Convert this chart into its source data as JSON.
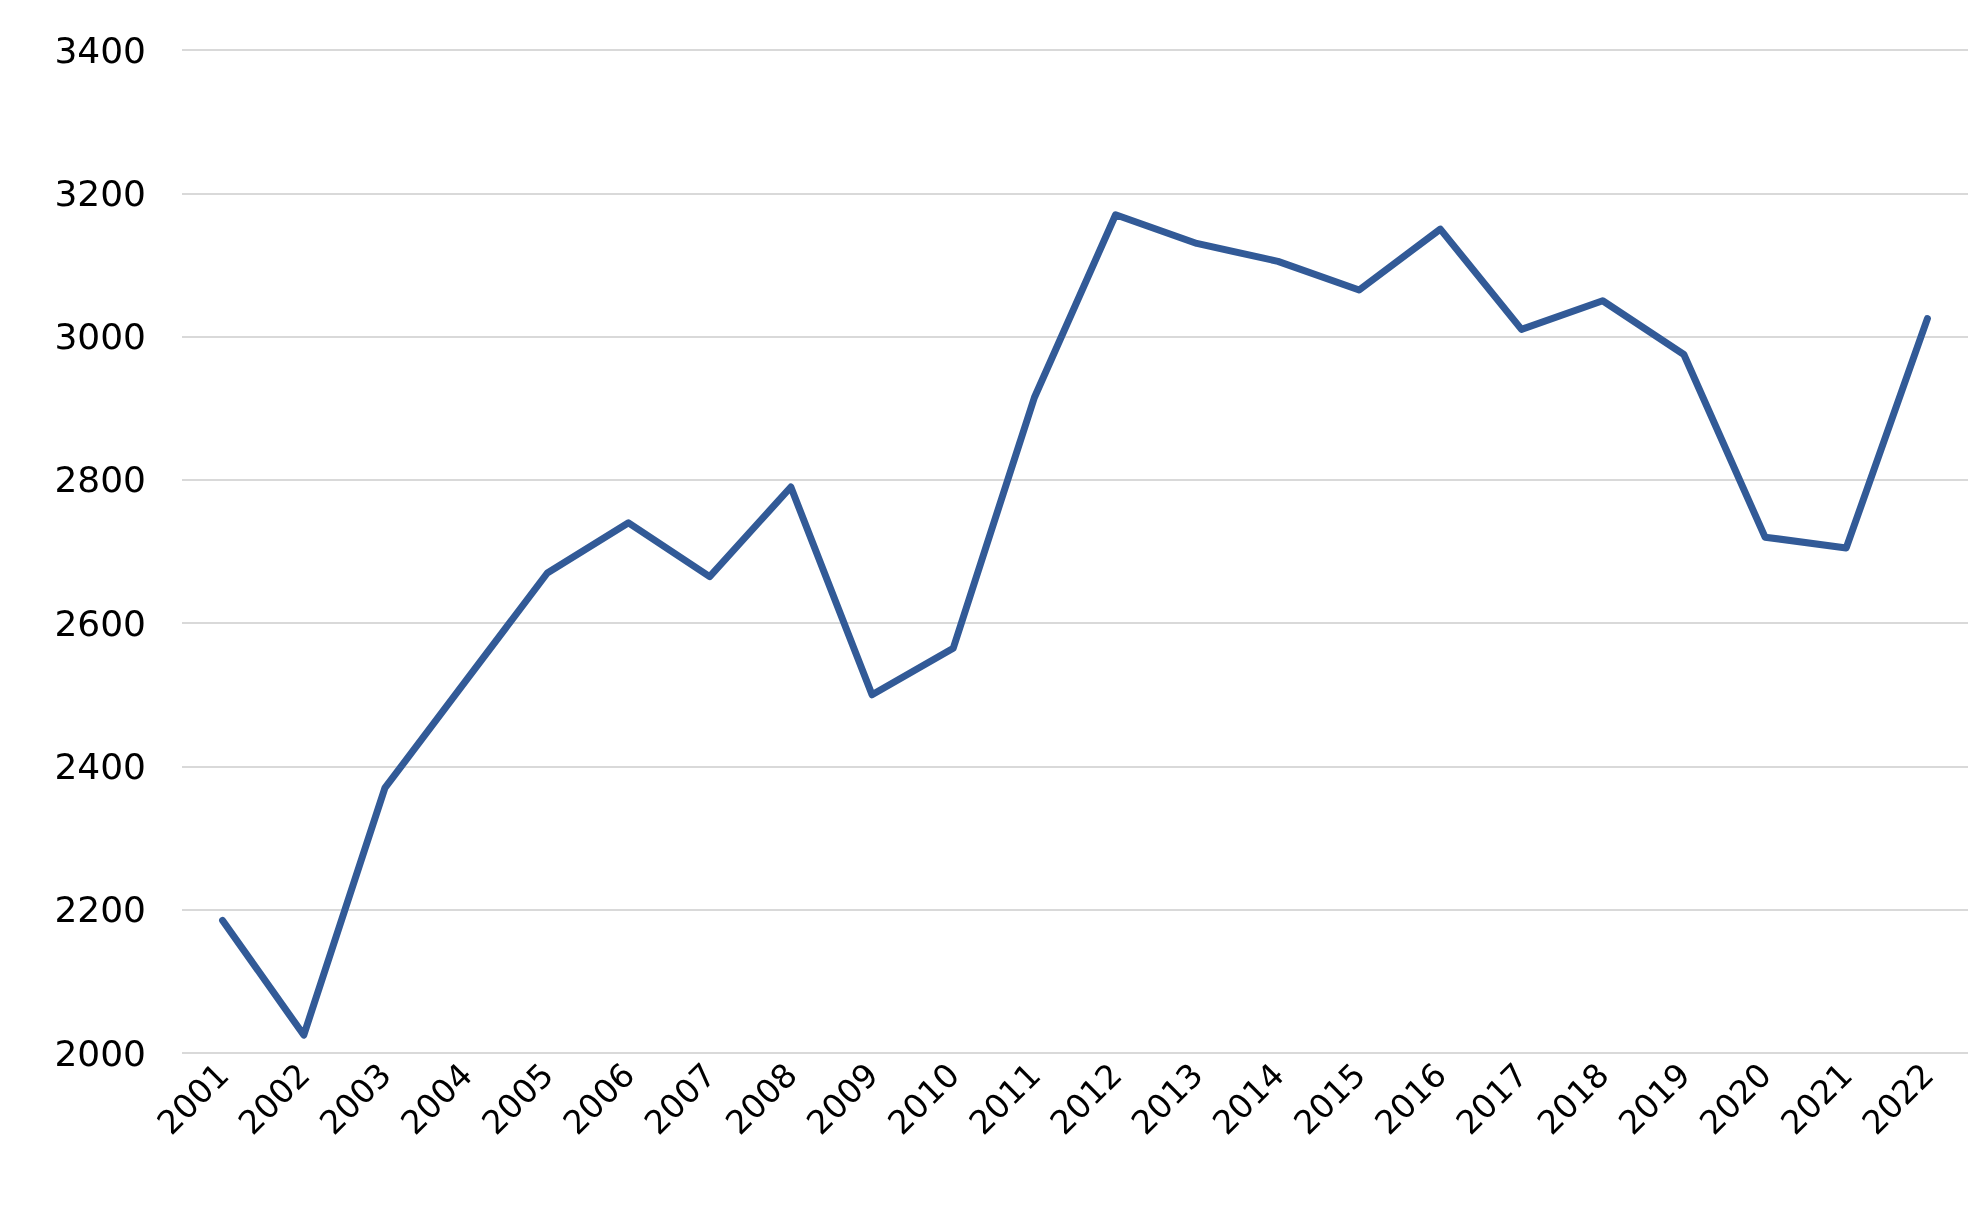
{
  "chart_data": {
    "type": "line",
    "categories": [
      "2001",
      "2002",
      "2003",
      "2004",
      "2005",
      "2006",
      "2007",
      "2008",
      "2009",
      "2010",
      "2011",
      "2012",
      "2013",
      "2014",
      "2015",
      "2016",
      "2017",
      "2018",
      "2019",
      "2020",
      "2021",
      "2022"
    ],
    "series": [
      {
        "color": "#325a97",
        "values": [
          2185,
          2025,
          2370,
          2520,
          2670,
          2740,
          2665,
          2790,
          2500,
          2565,
          2915,
          3170,
          3130,
          3105,
          3065,
          3150,
          3010,
          3050,
          2975,
          2720,
          2705,
          3025
        ]
      }
    ],
    "ylim": [
      2000,
      3400
    ],
    "yticks": [
      2000,
      2200,
      2400,
      2600,
      2800,
      3000,
      3200,
      3400
    ],
    "grid": "y",
    "marker": "none",
    "line_style": "solid"
  }
}
